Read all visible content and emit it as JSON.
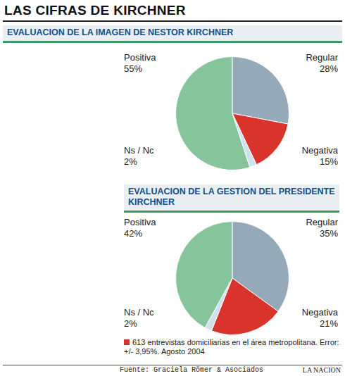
{
  "title": "LAS CIFRAS DE KIRCHNER",
  "chart_data": [
    {
      "type": "pie",
      "title": "EVALUACION DE LA IMAGEN DE NESTOR KIRCHNER",
      "categories": [
        "Positiva",
        "Regular",
        "Negativa",
        "Ns / Nc"
      ],
      "values": [
        55,
        28,
        15,
        2
      ],
      "value_labels": [
        "55%",
        "28%",
        "15%",
        "2%"
      ],
      "colors": [
        "#86c49c",
        "#94aab9",
        "#d9342b",
        "#cfe1ec"
      ],
      "data_labels": true
    },
    {
      "type": "pie",
      "title": "EVALUACION DE LA GESTION DEL PRESIDENTE KIRCHNER",
      "categories": [
        "Positiva",
        "Regular",
        "Negativa",
        "Ns / Nc"
      ],
      "values": [
        42,
        35,
        21,
        2
      ],
      "value_labels": [
        "42%",
        "35%",
        "21%",
        "2%"
      ],
      "colors": [
        "#86c49c",
        "#94aab9",
        "#d9342b",
        "#cfe1ec"
      ],
      "data_labels": true
    }
  ],
  "note": "613 entrevistas domiciliarias en el área metropolitana. Error: +/- 3,95%. Agosto 2004",
  "source": "Fuente: Graciela Römer & Asociados",
  "publisher": "LA NACION"
}
